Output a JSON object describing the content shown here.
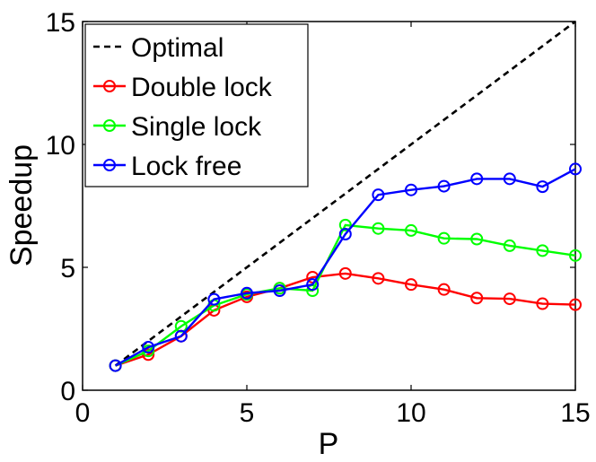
{
  "chart_data": {
    "type": "line",
    "xlabel": "P",
    "ylabel": "Speedup",
    "xlim": [
      0,
      15
    ],
    "ylim": [
      0,
      15
    ],
    "xticks": [
      0,
      5,
      10,
      15
    ],
    "yticks": [
      0,
      5,
      10,
      15
    ],
    "grid": false,
    "legend_position": "top-left",
    "series": [
      {
        "name": "Optimal",
        "color": "#000000",
        "style": "dashed",
        "marker": "none",
        "x": [
          1,
          15
        ],
        "y": [
          1,
          15
        ]
      },
      {
        "name": "Double lock",
        "color": "#ff0000",
        "style": "solid",
        "marker": "circle",
        "x": [
          1,
          2,
          3,
          4,
          5,
          6,
          7,
          8,
          9,
          10,
          11,
          12,
          13,
          14,
          15
        ],
        "y": [
          1.0,
          1.45,
          2.2,
          3.25,
          3.8,
          4.15,
          4.6,
          4.75,
          4.55,
          4.3,
          4.1,
          3.75,
          3.72,
          3.52,
          3.48
        ]
      },
      {
        "name": "Single lock",
        "color": "#00ff00",
        "style": "solid",
        "marker": "circle",
        "x": [
          1,
          2,
          3,
          4,
          5,
          6,
          7,
          8,
          9,
          10,
          11,
          12,
          13,
          14,
          15
        ],
        "y": [
          1.0,
          1.6,
          2.6,
          3.45,
          3.9,
          4.15,
          4.05,
          6.72,
          6.58,
          6.5,
          6.18,
          6.15,
          5.88,
          5.68,
          5.48
        ]
      },
      {
        "name": "Lock free",
        "color": "#0000ff",
        "style": "solid",
        "marker": "circle",
        "x": [
          1,
          2,
          3,
          4,
          5,
          6,
          7,
          8,
          9,
          10,
          11,
          12,
          13,
          14,
          15
        ],
        "y": [
          1.0,
          1.75,
          2.2,
          3.7,
          3.95,
          4.05,
          4.3,
          6.35,
          7.95,
          8.15,
          8.3,
          8.6,
          8.6,
          8.28,
          9.0
        ]
      }
    ]
  }
}
